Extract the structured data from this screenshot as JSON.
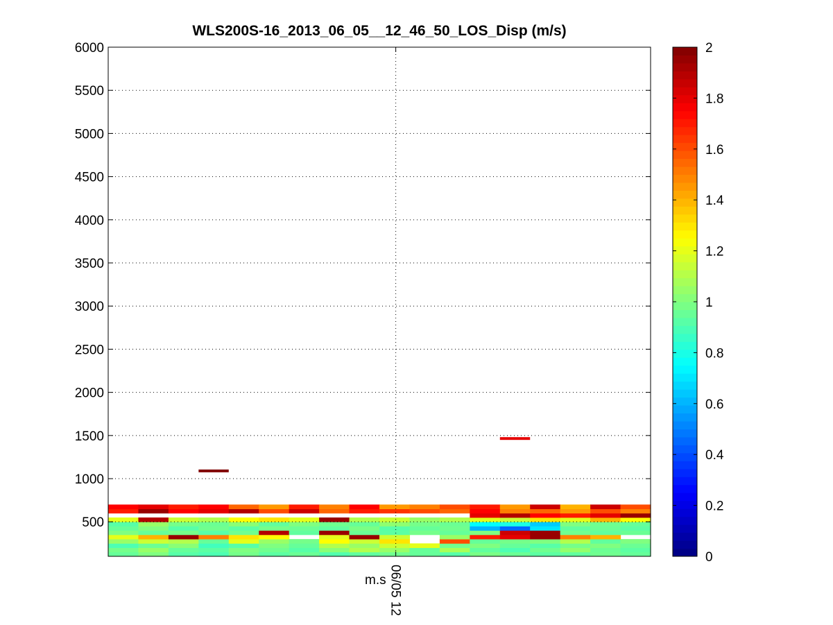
{
  "chart_data": {
    "type": "heatmap",
    "title": "WLS200S-16_2013_06_05__12_46_50_LOS_Disp (m/s)",
    "xlabel": "",
    "ylabel": "",
    "x_tick_label": "06/05 12",
    "x_tick_sublabel": "m.s",
    "ylim": [
      100,
      6000
    ],
    "y_ticks": [
      500,
      1000,
      1500,
      2000,
      2500,
      3000,
      3500,
      4000,
      4500,
      5000,
      5500,
      6000
    ],
    "grid": true,
    "colorbar": {
      "colormap": "jet",
      "range": [
        0,
        2
      ],
      "ticks": [
        0,
        0.2,
        0.4,
        0.6,
        0.8,
        1,
        1.2,
        1.4,
        1.6,
        1.8,
        2
      ]
    },
    "time_profiles": 18,
    "range_gates": [
      100,
      150,
      200,
      250,
      300,
      350,
      400,
      450,
      500,
      550,
      600,
      650,
      700
    ],
    "values": [
      [
        0.95,
        1.0,
        0.92,
        0.9,
        0.98,
        0.93,
        0.96,
        0.91,
        0.94,
        0.97,
        0.95,
        0.92,
        0.99,
        0.96,
        0.93,
        0.94,
        0.97,
        0.95
      ],
      [
        0.98,
        1.05,
        0.95,
        0.93,
        1.0,
        0.97,
        0.92,
        1.02,
        1.1,
        1.05,
        0.95,
        1.08,
        0.94,
        0.9,
        0.97,
        1.04,
        0.96,
        0.93
      ],
      [
        0.9,
        0.96,
        1.02,
        0.88,
        0.92,
        1.0,
        0.95,
        1.1,
        1.05,
        1.15,
        1.2,
        0.97,
        1.0,
        0.95,
        0.92,
        0.98,
        1.0,
        0.96
      ],
      [
        1.05,
        1.15,
        1.1,
        0.95,
        1.2,
        1.05,
        0.98,
        1.25,
        1.15,
        1.3,
        null,
        1.6,
        0.95,
        0.98,
        1.0,
        1.1,
        0.94,
        1.0
      ],
      [
        1.2,
        1.4,
        1.95,
        1.5,
        1.3,
        1.25,
        null,
        1.2,
        1.95,
        1.15,
        null,
        1.05,
        1.7,
        1.8,
        1.95,
        1.5,
        1.4,
        null
      ],
      [
        1.0,
        0.95,
        0.98,
        0.92,
        0.97,
        1.9,
        0.94,
        1.95,
        0.96,
        0.93,
        0.98,
        0.95,
        1.0,
        1.85,
        1.95,
        0.97,
        0.94,
        0.96
      ],
      [
        0.95,
        1.0,
        0.92,
        0.97,
        0.93,
        0.98,
        0.96,
        0.94,
        0.99,
        0.92,
        0.95,
        0.97,
        0.6,
        0.45,
        0.7,
        0.94,
        0.96,
        0.93
      ],
      [
        0.92,
        1.05,
        0.98,
        0.96,
        1.02,
        0.94,
        1.0,
        0.97,
        0.95,
        1.03,
        0.98,
        0.96,
        0.75,
        0.8,
        0.65,
        1.0,
        0.97,
        0.95
      ],
      [
        1.2,
        1.9,
        1.15,
        1.1,
        1.25,
        1.3,
        1.2,
        1.95,
        1.1,
        1.15,
        1.05,
        1.1,
        1.2,
        1.15,
        1.3,
        1.2,
        1.4,
        1.25
      ],
      [
        null,
        null,
        null,
        null,
        null,
        null,
        null,
        null,
        null,
        null,
        null,
        null,
        1.8,
        1.9,
        1.75,
        1.7,
        1.8,
        1.95
      ],
      [
        1.7,
        1.95,
        1.75,
        1.8,
        1.9,
        1.6,
        1.85,
        1.55,
        1.7,
        1.65,
        1.6,
        1.55,
        1.75,
        1.5,
        1.55,
        1.45,
        1.6,
        1.5
      ],
      [
        1.75,
        1.8,
        1.7,
        1.75,
        1.55,
        1.45,
        1.7,
        1.5,
        1.75,
        1.45,
        1.5,
        1.6,
        1.7,
        1.45,
        1.85,
        1.4,
        1.85,
        1.6
      ],
      [
        null,
        null,
        null,
        null,
        null,
        null,
        null,
        null,
        null,
        null,
        null,
        null,
        null,
        null,
        null,
        null,
        null,
        null
      ]
    ],
    "isolated_cells": [
      {
        "profile": 3,
        "altitude": 1090,
        "value": 2.0
      },
      {
        "profile": 13,
        "altitude": 1465,
        "value": 1.8
      }
    ]
  }
}
